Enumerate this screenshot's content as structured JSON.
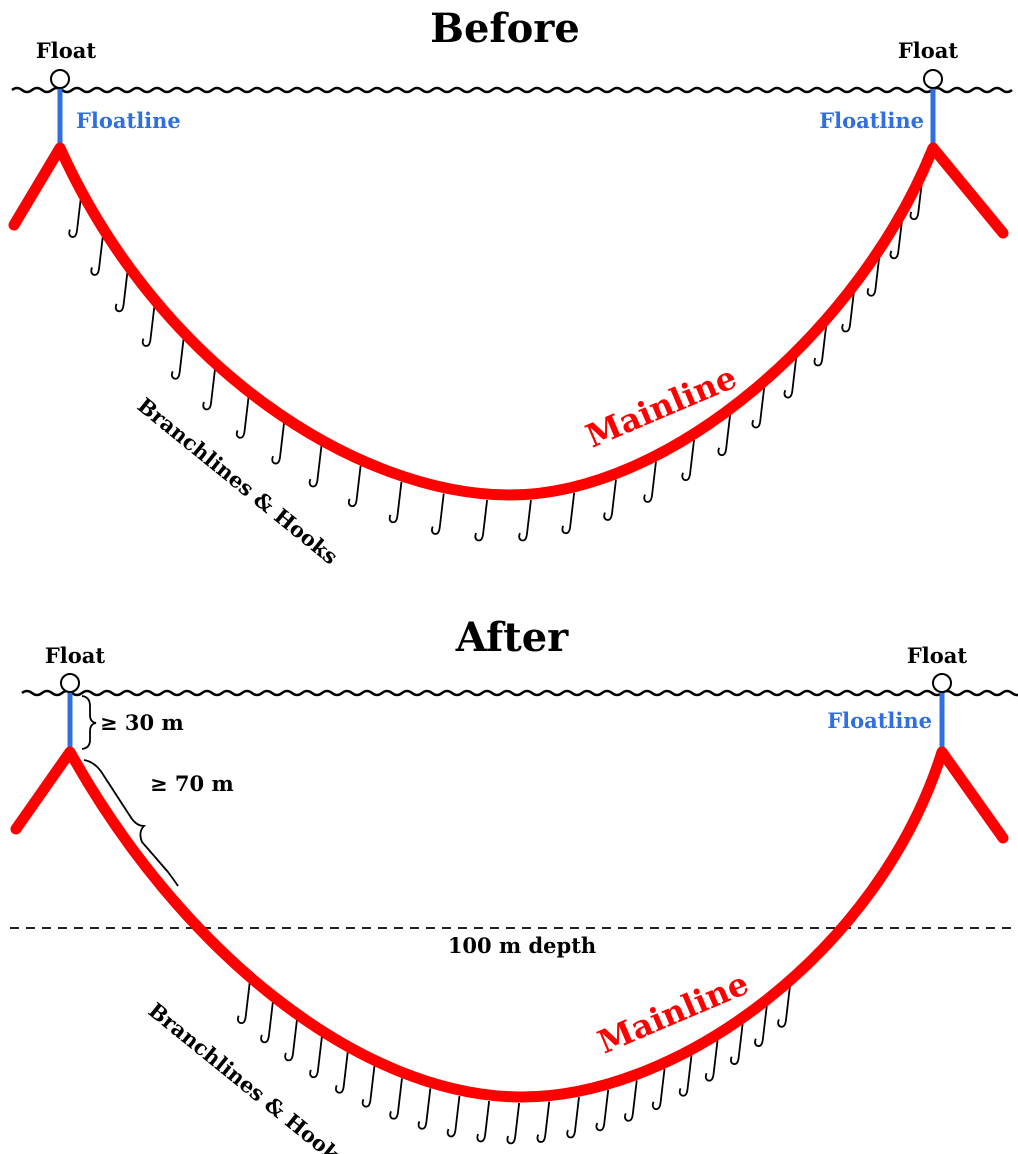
{
  "panels": [
    {
      "title": "Before",
      "float_left": "Float",
      "float_right": "Float",
      "floatline_left": "Floatline",
      "floatline_right": "Floatline",
      "mainline": "Mainline",
      "branchlines": "Branchlines & Hooks"
    },
    {
      "title": "After",
      "float_left": "Float",
      "float_right": "Float",
      "floatline_right": "Floatline",
      "floatline_length": "≥ 30 m",
      "segment_length": "≥ 70 m",
      "depth_line": "100 m depth",
      "mainline": "Mainline",
      "branchlines": "Branchlines & Hooks"
    }
  ],
  "colors": {
    "mainline": "#ff0000",
    "floatline": "#2f6fe0",
    "water": "#000000"
  }
}
